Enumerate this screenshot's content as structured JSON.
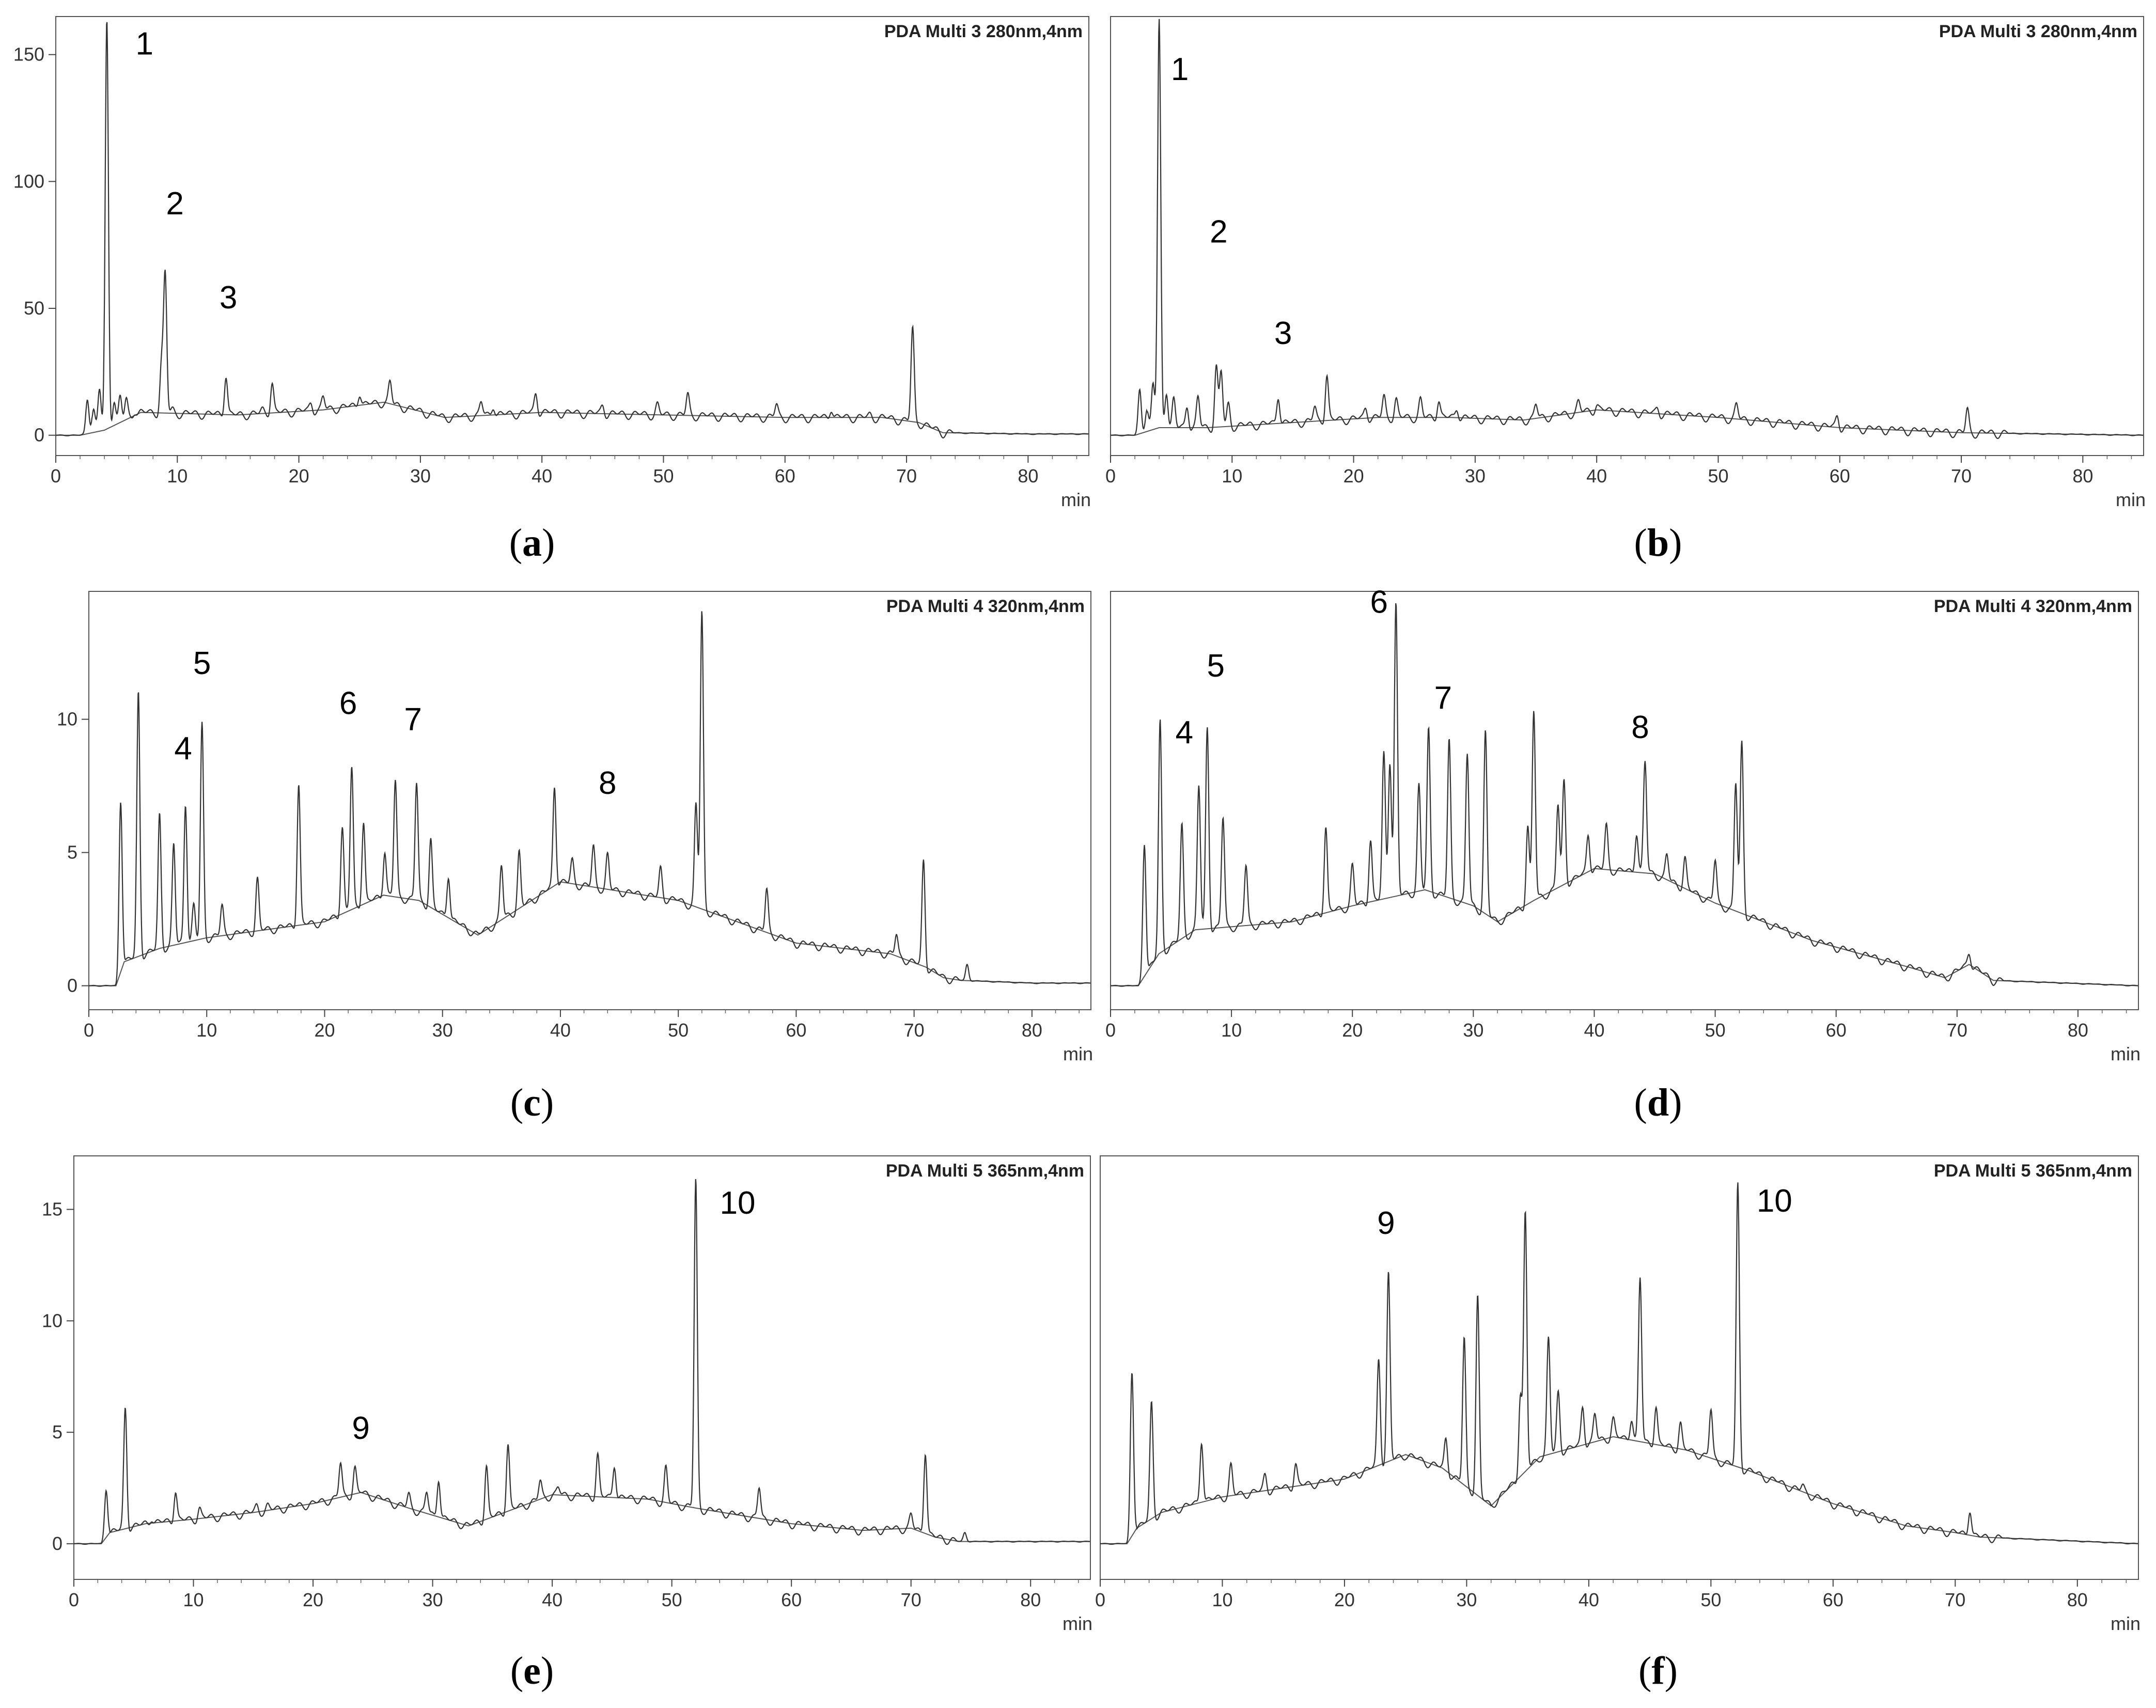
{
  "figure": {
    "panels": [
      {
        "id": "a",
        "caption": "a",
        "channel": "PDA Multi 3 280nm,4nm",
        "x_unit": "min"
      },
      {
        "id": "b",
        "caption": "b",
        "channel": "PDA Multi 3 280nm,4nm",
        "x_unit": "min"
      },
      {
        "id": "c",
        "caption": "c",
        "channel": "PDA Multi 4 320nm,4nm",
        "x_unit": "min"
      },
      {
        "id": "d",
        "caption": "d",
        "channel": "PDA Multi 4 320nm,4nm",
        "x_unit": "min"
      },
      {
        "id": "e",
        "caption": "e",
        "channel": "PDA Multi 5 365nm,4nm",
        "x_unit": "min"
      },
      {
        "id": "f",
        "caption": "f",
        "channel": "PDA Multi 5 365nm,4nm",
        "x_unit": "min"
      }
    ]
  },
  "chart_data": [
    {
      "panel": "a",
      "type": "line",
      "title": "PDA Multi 3 280nm,4nm",
      "xlabel": "min",
      "ylabel": "",
      "xlim": [
        0,
        85
      ],
      "ylim": [
        -8,
        165
      ],
      "xticks": [
        0,
        10,
        20,
        30,
        40,
        50,
        60,
        70,
        80
      ],
      "yticks": [
        0,
        50,
        100,
        150
      ],
      "baseline": [
        [
          0,
          0
        ],
        [
          2,
          0
        ],
        [
          4,
          2
        ],
        [
          7,
          9
        ],
        [
          15,
          8
        ],
        [
          22,
          10
        ],
        [
          27,
          13
        ],
        [
          32,
          7
        ],
        [
          40,
          9
        ],
        [
          50,
          8
        ],
        [
          60,
          7
        ],
        [
          68,
          7
        ],
        [
          71,
          5
        ],
        [
          73,
          1
        ],
        [
          80,
          0.5
        ],
        [
          85,
          0.5
        ]
      ],
      "peaks": [
        [
          2.6,
          14
        ],
        [
          3.1,
          10
        ],
        [
          3.6,
          18
        ],
        [
          4.2,
          163
        ],
        [
          4.8,
          14
        ],
        [
          5.3,
          15
        ],
        [
          5.8,
          14
        ],
        [
          6.5,
          10
        ],
        [
          8.7,
          28
        ],
        [
          9.0,
          63
        ],
        [
          9.6,
          10
        ],
        [
          14.0,
          24
        ],
        [
          17.0,
          10
        ],
        [
          17.8,
          21
        ],
        [
          21.0,
          13
        ],
        [
          22.0,
          15
        ],
        [
          25.0,
          17
        ],
        [
          27.5,
          21
        ],
        [
          35.0,
          13
        ],
        [
          36.0,
          12
        ],
        [
          39.5,
          17
        ],
        [
          45.0,
          12
        ],
        [
          49.5,
          12
        ],
        [
          52.0,
          16
        ],
        [
          59.3,
          12
        ],
        [
          63.8,
          11
        ],
        [
          67.0,
          8
        ],
        [
          70.5,
          42
        ]
      ],
      "annotations": [
        {
          "text": "1",
          "x": 7.3,
          "y": 150
        },
        {
          "text": "2",
          "x": 9.8,
          "y": 87
        },
        {
          "text": "3",
          "x": 14.2,
          "y": 50
        }
      ]
    },
    {
      "panel": "b",
      "type": "line",
      "title": "PDA Multi 3 280nm,4nm",
      "xlabel": "min",
      "ylabel": "",
      "xlim": [
        0,
        85
      ],
      "ylim": [
        -8,
        165
      ],
      "xticks": [
        0,
        10,
        20,
        30,
        40,
        50,
        60,
        70,
        80
      ],
      "yticks": [],
      "baseline": [
        [
          0,
          0
        ],
        [
          2,
          0
        ],
        [
          4,
          3
        ],
        [
          8,
          3
        ],
        [
          15,
          5
        ],
        [
          22,
          7
        ],
        [
          28,
          7
        ],
        [
          34,
          6
        ],
        [
          40,
          10
        ],
        [
          50,
          7
        ],
        [
          60,
          3
        ],
        [
          70,
          1
        ],
        [
          85,
          0
        ]
      ],
      "peaks": [
        [
          2.4,
          18
        ],
        [
          3.0,
          10
        ],
        [
          3.5,
          20
        ],
        [
          4.0,
          163
        ],
        [
          4.6,
          18
        ],
        [
          5.2,
          14
        ],
        [
          6.3,
          12
        ],
        [
          7.2,
          15
        ],
        [
          8.7,
          27
        ],
        [
          9.1,
          25
        ],
        [
          9.7,
          12
        ],
        [
          13.8,
          16
        ],
        [
          16.8,
          11
        ],
        [
          17.8,
          24
        ],
        [
          21.0,
          11
        ],
        [
          22.5,
          15
        ],
        [
          23.5,
          14
        ],
        [
          25.5,
          14
        ],
        [
          27.0,
          14
        ],
        [
          28.5,
          11
        ],
        [
          35.0,
          12
        ],
        [
          38.5,
          13
        ],
        [
          40.0,
          12
        ],
        [
          45.0,
          11
        ],
        [
          51.5,
          12
        ],
        [
          59.8,
          8
        ],
        [
          70.5,
          10
        ]
      ],
      "annotations": [
        {
          "text": "1",
          "x": 5.7,
          "y": 140
        },
        {
          "text": "2",
          "x": 8.9,
          "y": 76
        },
        {
          "text": "3",
          "x": 14.2,
          "y": 36
        }
      ]
    },
    {
      "panel": "c",
      "type": "line",
      "title": "PDA Multi 4 320nm,4nm",
      "xlabel": "min",
      "ylabel": "",
      "xlim": [
        0,
        85
      ],
      "ylim": [
        -0.9,
        14.8
      ],
      "xticks": [
        0,
        10,
        20,
        30,
        40,
        50,
        60,
        70,
        80
      ],
      "yticks": [
        0,
        5,
        10
      ],
      "baseline": [
        [
          0,
          0
        ],
        [
          2.3,
          0
        ],
        [
          3,
          0.9
        ],
        [
          6,
          1.4
        ],
        [
          10,
          1.8
        ],
        [
          20,
          2.4
        ],
        [
          25,
          3.4
        ],
        [
          28,
          3.2
        ],
        [
          33,
          1.9
        ],
        [
          40,
          3.9
        ],
        [
          50,
          3.2
        ],
        [
          60,
          1.6
        ],
        [
          68,
          1.2
        ],
        [
          71,
          0.7
        ],
        [
          72.5,
          0.3
        ],
        [
          74,
          0.2
        ],
        [
          80,
          0.1
        ],
        [
          85,
          0.1
        ]
      ],
      "peaks": [
        [
          2.7,
          6.9
        ],
        [
          4.2,
          11.0
        ],
        [
          6.0,
          6.4
        ],
        [
          7.2,
          5.3
        ],
        [
          8.2,
          6.9
        ],
        [
          8.9,
          3.0
        ],
        [
          9.6,
          9.8
        ],
        [
          11.3,
          3.0
        ],
        [
          14.3,
          4.0
        ],
        [
          17.8,
          7.6
        ],
        [
          21.5,
          6.0
        ],
        [
          22.3,
          8.2
        ],
        [
          23.3,
          6.2
        ],
        [
          25.1,
          5.1
        ],
        [
          26.0,
          7.7
        ],
        [
          27.8,
          7.6
        ],
        [
          29.0,
          5.5
        ],
        [
          30.5,
          4.2
        ],
        [
          35.0,
          4.5
        ],
        [
          36.5,
          5.0
        ],
        [
          39.5,
          7.5
        ],
        [
          41.0,
          4.7
        ],
        [
          42.8,
          5.2
        ],
        [
          44.0,
          4.9
        ],
        [
          48.5,
          4.4
        ],
        [
          51.5,
          6.8
        ],
        [
          52.0,
          14.0
        ],
        [
          57.5,
          3.6
        ],
        [
          62.3,
          1.5
        ],
        [
          68.5,
          1.9
        ],
        [
          70.8,
          4.7
        ],
        [
          74.5,
          0.8
        ]
      ],
      "annotations": [
        {
          "text": "5",
          "x": 9.6,
          "y": 11.7
        },
        {
          "text": "4",
          "x": 8.0,
          "y": 8.5
        },
        {
          "text": "6",
          "x": 22.0,
          "y": 10.2
        },
        {
          "text": "7",
          "x": 27.5,
          "y": 9.6
        },
        {
          "text": "8",
          "x": 44.0,
          "y": 7.2
        }
      ]
    },
    {
      "panel": "d",
      "type": "line",
      "title": "PDA Multi 4 320nm,4nm",
      "xlabel": "min",
      "ylabel": "",
      "xlim": [
        0,
        85
      ],
      "ylim": [
        -0.9,
        14.8
      ],
      "xticks": [
        0,
        10,
        20,
        30,
        40,
        50,
        60,
        70,
        80
      ],
      "yticks": [],
      "baseline": [
        [
          0,
          0
        ],
        [
          2.3,
          0
        ],
        [
          4,
          1.2
        ],
        [
          7,
          2.1
        ],
        [
          15,
          2.4
        ],
        [
          20,
          3.0
        ],
        [
          26,
          3.6
        ],
        [
          30,
          3.0
        ],
        [
          32,
          2.4
        ],
        [
          35,
          3.2
        ],
        [
          40,
          4.4
        ],
        [
          45,
          4.2
        ],
        [
          50,
          3.1
        ],
        [
          58,
          1.7
        ],
        [
          66,
          0.7
        ],
        [
          69,
          0.3
        ],
        [
          71,
          0.8
        ],
        [
          73,
          0.2
        ],
        [
          85,
          0
        ]
      ],
      "peaks": [
        [
          2.8,
          5.3
        ],
        [
          4.1,
          9.9
        ],
        [
          5.9,
          6.0
        ],
        [
          7.3,
          7.5
        ],
        [
          8.0,
          9.7
        ],
        [
          9.3,
          6.3
        ],
        [
          11.2,
          4.5
        ],
        [
          17.8,
          6.0
        ],
        [
          20.0,
          4.5
        ],
        [
          21.5,
          5.5
        ],
        [
          22.6,
          8.7
        ],
        [
          23.1,
          8.5
        ],
        [
          23.6,
          14.3
        ],
        [
          25.5,
          7.5
        ],
        [
          26.3,
          9.6
        ],
        [
          28.0,
          9.2
        ],
        [
          29.5,
          8.7
        ],
        [
          31.0,
          9.5
        ],
        [
          34.5,
          6.0
        ],
        [
          35.0,
          10.3
        ],
        [
          37.0,
          6.8
        ],
        [
          37.5,
          7.7
        ],
        [
          39.5,
          5.7
        ],
        [
          41.0,
          6.0
        ],
        [
          43.5,
          5.8
        ],
        [
          44.2,
          8.4
        ],
        [
          46.0,
          4.9
        ],
        [
          47.5,
          4.8
        ],
        [
          50.0,
          4.7
        ],
        [
          51.7,
          7.6
        ],
        [
          52.2,
          9.1
        ],
        [
          71.0,
          1.3
        ]
      ],
      "annotations": [
        {
          "text": "6",
          "x": 22.2,
          "y": 14.0
        },
        {
          "text": "5",
          "x": 8.7,
          "y": 11.6
        },
        {
          "text": "4",
          "x": 6.1,
          "y": 9.1
        },
        {
          "text": "7",
          "x": 27.5,
          "y": 10.4
        },
        {
          "text": "8",
          "x": 43.8,
          "y": 9.3
        }
      ]
    },
    {
      "panel": "e",
      "type": "line",
      "title": "PDA Multi 5 365nm,4nm",
      "xlabel": "min",
      "ylabel": "",
      "xlim": [
        0,
        85
      ],
      "ylim": [
        -1.6,
        17.4
      ],
      "xticks": [
        0,
        10,
        20,
        30,
        40,
        50,
        60,
        70,
        80
      ],
      "yticks": [
        0,
        5,
        10,
        15
      ],
      "baseline": [
        [
          0,
          0
        ],
        [
          2.3,
          0
        ],
        [
          3,
          0.5
        ],
        [
          6,
          0.9
        ],
        [
          10,
          1.1
        ],
        [
          15,
          1.4
        ],
        [
          20,
          1.8
        ],
        [
          24,
          2.3
        ],
        [
          28,
          1.6
        ],
        [
          33,
          0.8
        ],
        [
          40,
          2.2
        ],
        [
          48,
          2.0
        ],
        [
          52,
          1.6
        ],
        [
          60,
          0.9
        ],
        [
          66,
          0.6
        ],
        [
          70,
          0.7
        ],
        [
          72,
          0.3
        ],
        [
          74,
          0.1
        ],
        [
          85,
          0.1
        ]
      ],
      "peaks": [
        [
          2.7,
          2.4
        ],
        [
          4.3,
          6.1
        ],
        [
          6.5,
          1.2
        ],
        [
          8.5,
          2.4
        ],
        [
          10.5,
          1.6
        ],
        [
          15.3,
          1.7
        ],
        [
          16.2,
          1.7
        ],
        [
          22.3,
          3.6
        ],
        [
          23.5,
          3.4
        ],
        [
          28.0,
          2.2
        ],
        [
          29.5,
          2.3
        ],
        [
          30.5,
          3.0
        ],
        [
          34.5,
          3.5
        ],
        [
          36.3,
          4.5
        ],
        [
          39.0,
          2.8
        ],
        [
          40.5,
          2.5
        ],
        [
          43.8,
          4.0
        ],
        [
          45.2,
          3.6
        ],
        [
          49.5,
          3.4
        ],
        [
          52.0,
          16.3
        ],
        [
          57.3,
          2.5
        ],
        [
          70.0,
          1.3
        ],
        [
          71.2,
          4.2
        ],
        [
          74.5,
          0.5
        ]
      ],
      "annotations": [
        {
          "text": "9",
          "x": 24.0,
          "y": 4.7
        },
        {
          "text": "10",
          "x": 55.5,
          "y": 14.8
        }
      ]
    },
    {
      "panel": "f",
      "type": "line",
      "title": "PDA Multi 5 365nm,4nm",
      "xlabel": "min",
      "ylabel": "",
      "xlim": [
        0,
        85
      ],
      "ylim": [
        -1.6,
        17.4
      ],
      "xticks": [
        0,
        10,
        20,
        30,
        40,
        50,
        60,
        70,
        80
      ],
      "yticks": [],
      "baseline": [
        [
          0,
          0
        ],
        [
          2.2,
          0
        ],
        [
          3,
          0.7
        ],
        [
          5,
          1.4
        ],
        [
          10,
          2.1
        ],
        [
          20,
          2.9
        ],
        [
          25,
          4.0
        ],
        [
          28,
          3.4
        ],
        [
          32,
          1.7
        ],
        [
          36,
          3.9
        ],
        [
          42,
          4.8
        ],
        [
          48,
          4.2
        ],
        [
          53,
          3.3
        ],
        [
          60,
          1.8
        ],
        [
          66,
          0.8
        ],
        [
          70,
          0.5
        ],
        [
          72,
          0.3
        ],
        [
          85,
          0
        ]
      ],
      "peaks": [
        [
          2.6,
          7.7
        ],
        [
          4.2,
          6.3
        ],
        [
          8.3,
          4.7
        ],
        [
          10.7,
          3.5
        ],
        [
          13.5,
          3.1
        ],
        [
          16.0,
          3.6
        ],
        [
          22.8,
          8.3
        ],
        [
          23.6,
          12.1
        ],
        [
          28.3,
          4.7
        ],
        [
          29.8,
          9.2
        ],
        [
          30.9,
          11.1
        ],
        [
          34.4,
          6.7
        ],
        [
          34.8,
          14.8
        ],
        [
          36.7,
          9.2
        ],
        [
          37.5,
          6.8
        ],
        [
          39.5,
          6.2
        ],
        [
          40.5,
          5.8
        ],
        [
          42.0,
          5.6
        ],
        [
          43.5,
          5.7
        ],
        [
          44.2,
          11.9
        ],
        [
          45.5,
          6.2
        ],
        [
          47.5,
          5.4
        ],
        [
          50.0,
          6.0
        ],
        [
          52.2,
          16.1
        ],
        [
          57.5,
          2.6
        ],
        [
          71.2,
          1.6
        ]
      ],
      "annotations": [
        {
          "text": "9",
          "x": 23.4,
          "y": 13.9
        },
        {
          "text": "10",
          "x": 55.2,
          "y": 14.9
        }
      ]
    }
  ]
}
